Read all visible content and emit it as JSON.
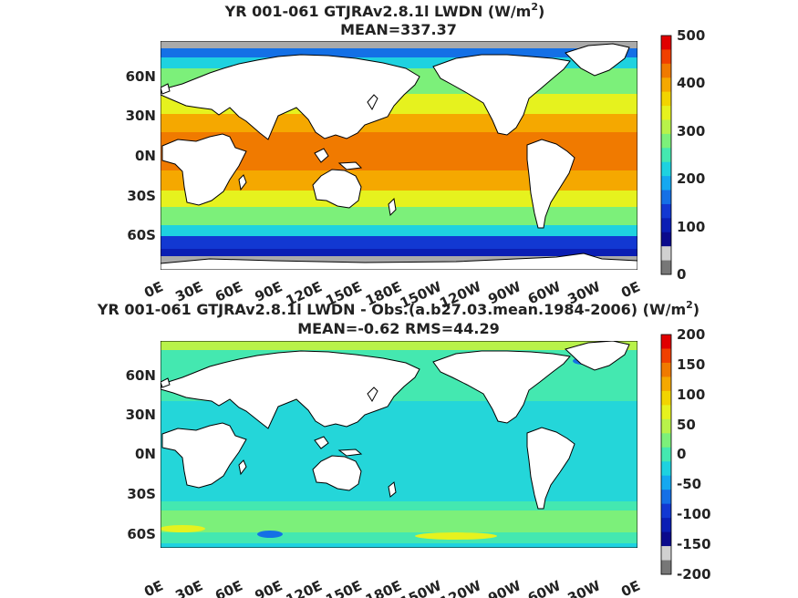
{
  "panels": [
    {
      "title_main": "YR 001-061 GTJRAv2.8.1l LWDN (W/m",
      "title_sup": "2",
      "title_close": ")",
      "subtitle": "MEAN=337.37",
      "lat_labels": [
        "60N",
        "30N",
        "0N",
        "30S",
        "60S"
      ],
      "lon_labels": [
        "0E",
        "30E",
        "60E",
        "90E",
        "120E",
        "150E",
        "180E",
        "150W",
        "120W",
        "90W",
        "60W",
        "30W",
        "0E"
      ],
      "colorbar_labels": [
        "500",
        "400",
        "300",
        "200",
        "100",
        "0"
      ],
      "colorbar_colors": [
        "#e00000",
        "#f04000",
        "#f07a00",
        "#f5a800",
        "#f2d400",
        "#e6f21e",
        "#b8f24a",
        "#7cf07a",
        "#44e8b0",
        "#1ed2e0",
        "#14a8f0",
        "#1470e6",
        "#1238d2",
        "#0a1eb4",
        "#0a0a8c",
        "#d0d0d0",
        "#777777"
      ],
      "field": "full"
    },
    {
      "title_main": "YR 001-061 GTJRAv2.8.1l LWDN - Obs.(a.b27.03.mean.1984-2006) (W/m",
      "title_sup": "2",
      "title_close": ")",
      "subtitle": "MEAN=-0.62 RMS=44.29",
      "lat_labels": [
        "60N",
        "30N",
        "0N",
        "30S",
        "60S"
      ],
      "lon_labels": [
        "0E",
        "30E",
        "60E",
        "90E",
        "120E",
        "150E",
        "180E",
        "150W",
        "120W",
        "90W",
        "60W",
        "30W",
        "0E"
      ],
      "colorbar_labels": [
        "200",
        "150",
        "100",
        "50",
        "0",
        "-50",
        "-100",
        "-150",
        "-200"
      ],
      "colorbar_colors": [
        "#e00000",
        "#f04000",
        "#f07a00",
        "#f5a800",
        "#f2d400",
        "#e6f21e",
        "#b8f24a",
        "#7cf07a",
        "#44e8b0",
        "#1ed2e0",
        "#14a8f0",
        "#1470e6",
        "#1238d2",
        "#0a1eb4",
        "#0a0a8c",
        "#d0d0d0",
        "#777777"
      ],
      "field": "diff"
    }
  ]
}
